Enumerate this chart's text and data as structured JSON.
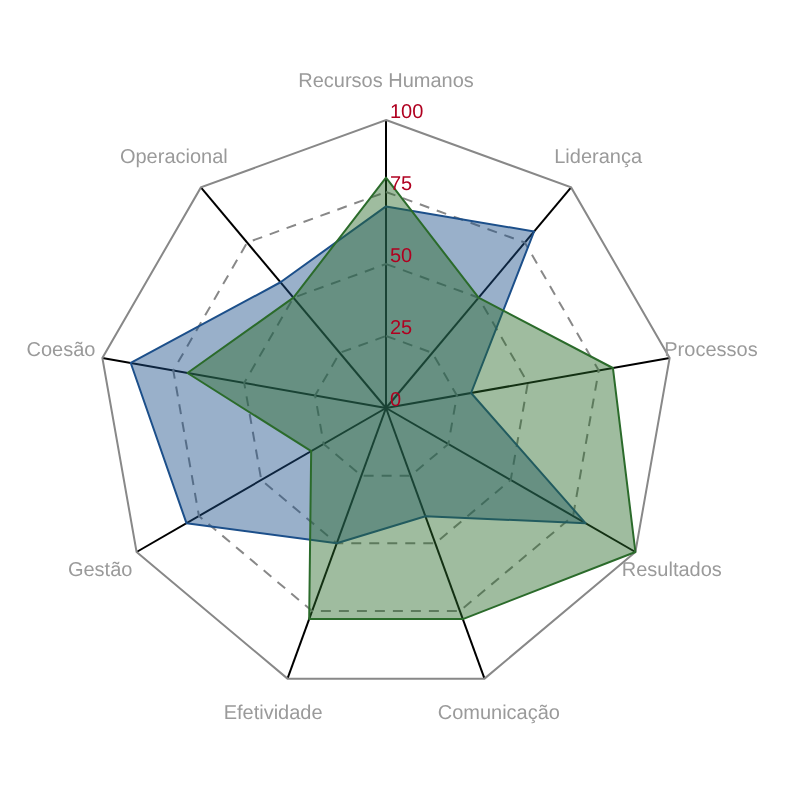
{
  "chart_data": {
    "type": "radar",
    "categories": [
      "Recursos Humanos",
      "Liderança",
      "Processos",
      "Resultados",
      "Comunicação",
      "Efetividade",
      "Gestão",
      "Coesão",
      "Operacional"
    ],
    "series": [
      {
        "color": "#1c4f8a",
        "values": [
          70,
          80,
          30,
          80,
          40,
          50,
          80,
          90,
          57
        ]
      },
      {
        "color": "#2b6b2b",
        "values": [
          80,
          50,
          80,
          100,
          78,
          78,
          30,
          70,
          50
        ]
      }
    ],
    "ylim": [
      0,
      100
    ],
    "yticks": [
      0,
      25,
      50,
      75,
      100
    ],
    "grid": true
  }
}
